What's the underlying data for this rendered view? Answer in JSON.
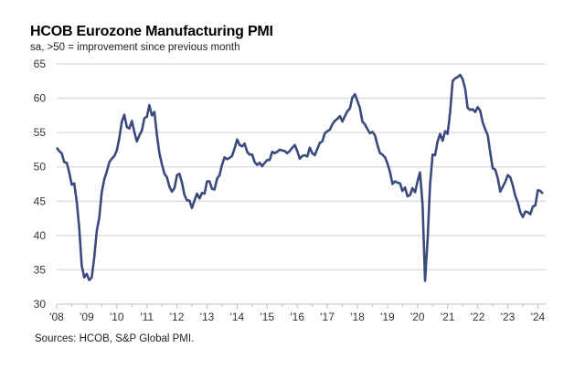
{
  "chart_data": {
    "type": "line",
    "title": "HCOB Eurozone Manufacturing PMI",
    "subtitle": "sa, >50 = improvement  since previous month",
    "source": "Sources: HCOB, S&P Global PMI.",
    "ylim": [
      30,
      65
    ],
    "yticks": [
      30,
      35,
      40,
      45,
      50,
      55,
      60,
      65
    ],
    "xtick_labels": [
      "'08",
      "'09",
      "'10",
      "'11",
      "'12",
      "'13",
      "'14",
      "'15",
      "'16",
      "'17",
      "'18",
      "'19",
      "'20",
      "'21",
      "'22",
      "'23",
      "'24"
    ],
    "x_start": "2008-01",
    "x_frequency": "monthly",
    "grid": true,
    "line_color": "#3b4a7d",
    "series": [
      {
        "values": [
          52.8,
          52.3,
          52.0,
          50.7,
          50.6,
          49.2,
          47.4,
          47.6,
          45.0,
          41.1,
          35.6,
          33.9,
          34.4,
          33.5,
          33.9,
          36.8,
          40.7,
          42.6,
          46.3,
          48.2,
          49.3,
          50.7,
          51.2,
          51.6,
          52.4,
          54.2,
          56.6,
          57.6,
          55.8,
          55.6,
          56.7,
          55.1,
          53.7,
          54.6,
          55.3,
          57.1,
          57.3,
          59.0,
          57.5,
          58.0,
          54.6,
          52.0,
          50.4,
          49.0,
          48.5,
          47.1,
          46.4,
          46.9,
          48.8,
          49.0,
          47.7,
          45.9,
          45.1,
          45.1,
          44.0,
          45.1,
          46.1,
          45.4,
          46.2,
          46.1,
          47.9,
          47.9,
          46.8,
          46.7,
          48.3,
          48.8,
          50.3,
          51.4,
          51.1,
          51.3,
          51.6,
          52.7,
          54.0,
          53.2,
          53.0,
          53.4,
          52.2,
          51.8,
          51.8,
          50.7,
          50.3,
          50.6,
          50.1,
          50.6,
          51.0,
          51.0,
          52.2,
          52.0,
          52.2,
          52.5,
          52.4,
          52.3,
          52.0,
          52.3,
          52.8,
          53.2,
          52.3,
          51.2,
          51.6,
          51.7,
          51.5,
          52.8,
          52.0,
          51.7,
          52.6,
          53.5,
          53.7,
          54.9,
          55.2,
          55.4,
          56.2,
          56.7,
          57.0,
          57.4,
          56.6,
          57.4,
          58.1,
          58.5,
          60.1,
          60.6,
          59.6,
          58.6,
          56.6,
          56.2,
          55.5,
          54.9,
          55.1,
          54.6,
          53.2,
          52.0,
          51.8,
          51.4,
          50.5,
          49.3,
          47.5,
          47.9,
          47.7,
          47.6,
          46.5,
          47.0,
          45.7,
          45.9,
          46.9,
          46.3,
          47.9,
          49.2,
          44.5,
          33.4,
          39.4,
          47.4,
          51.8,
          51.7,
          53.7,
          54.8,
          53.8,
          55.2,
          54.8,
          57.9,
          62.5,
          62.9,
          63.1,
          63.4,
          62.8,
          61.4,
          58.6,
          58.3,
          58.4,
          58.0,
          58.7,
          58.2,
          56.5,
          55.5,
          54.6,
          52.1,
          49.8,
          49.6,
          48.4,
          46.4,
          47.1,
          47.8,
          48.8,
          48.5,
          47.3,
          45.8,
          44.8,
          43.4,
          42.7,
          43.5,
          43.4,
          43.1,
          44.2,
          44.4,
          46.6,
          46.5,
          46.1
        ]
      }
    ]
  }
}
